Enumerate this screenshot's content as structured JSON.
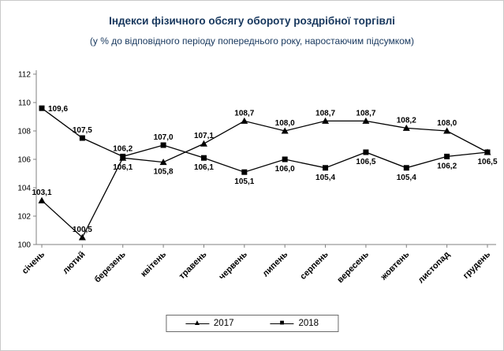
{
  "title": "Індекси фізичного обсягу обороту роздрібної торгівлі",
  "subtitle": "(у % до відповідного періоду попереднього року, наростаючим підсумком)",
  "colors": {
    "title_text": "#17375d",
    "axis": "#808080",
    "series": "#000000"
  },
  "legend": {
    "items": [
      {
        "label": "2017",
        "glyph": "▲",
        "icon": "triangle-marker-icon"
      },
      {
        "label": "2018",
        "glyph": "■",
        "icon": "square-marker-icon"
      }
    ]
  },
  "chart_data": {
    "type": "line",
    "title": "Індекси фізичного обсягу обороту роздрібної торгівлі",
    "subtitle": "(у % до відповідного періоду попереднього року, наростаючим підсумком)",
    "xlabel": "",
    "ylabel": "",
    "ylim": [
      100,
      112
    ],
    "ytick_step": 2,
    "grid": false,
    "legend_position": "bottom",
    "categories": [
      "січень",
      "лютий",
      "березень",
      "квітень",
      "травень",
      "червень",
      "липень",
      "серпень",
      "вересень",
      "жовтень",
      "листопад",
      "грудень"
    ],
    "series": [
      {
        "name": "2017",
        "marker": "triangle",
        "values": [
          103.1,
          100.5,
          106.1,
          105.8,
          107.1,
          108.7,
          108.0,
          108.7,
          108.7,
          108.2,
          108.0,
          106.5
        ],
        "labels": [
          "103,1",
          "100,5",
          "106,1",
          "105,8",
          "107,1",
          "108,7",
          "108,0",
          "108,7",
          "108,7",
          "108,2",
          "108,0",
          "106,5"
        ],
        "label_pos": [
          "above",
          "above",
          "below",
          "below",
          "above",
          "above",
          "above",
          "above",
          "above",
          "above",
          "above",
          "below"
        ]
      },
      {
        "name": "2018",
        "marker": "square",
        "values": [
          109.6,
          107.5,
          106.2,
          107.0,
          106.1,
          105.1,
          106.0,
          105.4,
          106.5,
          105.4,
          106.2,
          106.5
        ],
        "labels": [
          "109,6",
          "107,5",
          "106,2",
          "107,0",
          "106,1",
          "105,1",
          "106,0",
          "105,4",
          "106,5",
          "105,4",
          "106,2",
          ""
        ],
        "label_pos": [
          "right",
          "above",
          "above",
          "above",
          "below",
          "below",
          "below",
          "below",
          "below",
          "below",
          "below",
          "above"
        ]
      }
    ]
  }
}
